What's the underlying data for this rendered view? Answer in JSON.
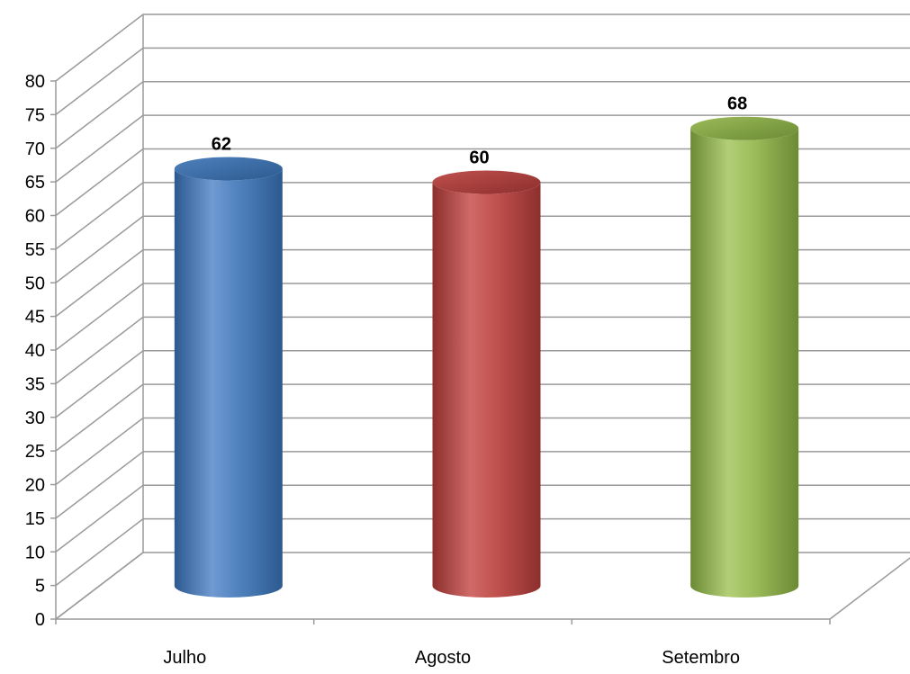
{
  "chart_data": {
    "type": "bar",
    "categories": [
      "Julho",
      "Agosto",
      "Setembro"
    ],
    "values": [
      62,
      60,
      68
    ],
    "data_labels": [
      "62",
      "60",
      "68"
    ],
    "title": "",
    "xlabel": "",
    "ylabel": "",
    "ylim": [
      0,
      80
    ],
    "ytick_step": 5,
    "yticks": [
      "0",
      "5",
      "10",
      "15",
      "20",
      "25",
      "30",
      "35",
      "40",
      "45",
      "50",
      "55",
      "60",
      "65",
      "70",
      "75",
      "80"
    ],
    "grid": true,
    "legend": "none",
    "style": "3d-cylinder",
    "colors": {
      "bars": [
        "#4f81bd",
        "#c0504d",
        "#9bbb59"
      ],
      "bars_dark": [
        "#2c5a8f",
        "#8c2f2d",
        "#6b8a34"
      ],
      "bars_light": [
        "#6f9ad2",
        "#d06a67",
        "#b3cf76"
      ],
      "grid": "#9a9a9a",
      "axis": "#9a9a9a"
    }
  }
}
